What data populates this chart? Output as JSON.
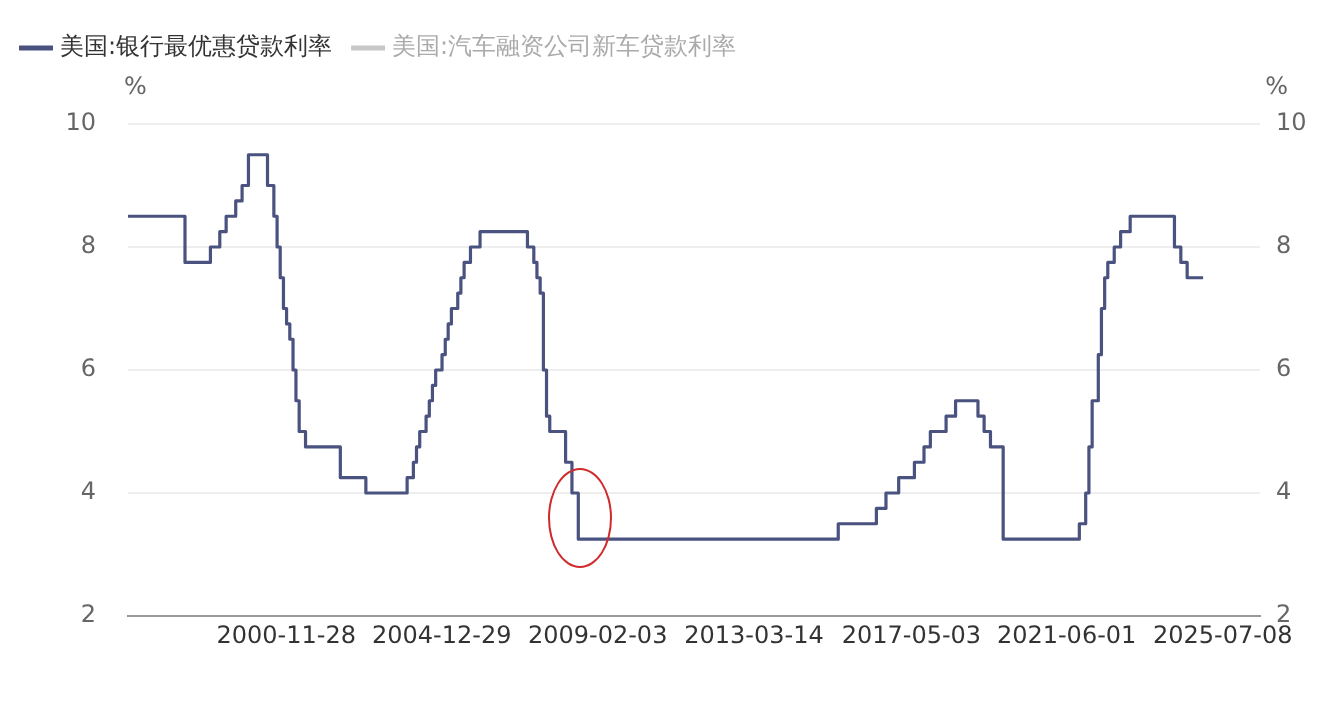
{
  "chart_data": {
    "type": "step",
    "ylabel": "%",
    "y2label": "%",
    "legend": "top left",
    "grid": "y",
    "xlim": [
      "1996-10",
      "2026-07"
    ],
    "xticks": [
      {
        "value": "2000-11-28",
        "label": "2000-11-28"
      },
      {
        "value": "2004-12-29",
        "label": "2004-12-29"
      },
      {
        "value": "2009-02-03",
        "label": "2009-02-03"
      },
      {
        "value": "2013-03-14",
        "label": "2013-03-14"
      },
      {
        "value": "2017-05-03",
        "label": "2017-05-03"
      },
      {
        "value": "2021-06-01",
        "label": "2021-06-01"
      },
      {
        "value": "2025-07-08",
        "label": "2025-07-08"
      }
    ],
    "ylim": [
      2,
      10
    ],
    "yticks": [
      2,
      4,
      6,
      8,
      10
    ],
    "y2lim": [
      2,
      10
    ],
    "y2ticks": [
      2,
      4,
      6,
      8,
      10
    ],
    "series": [
      {
        "name": "美国:银行最优惠贷款利率",
        "color": "#4a5280",
        "x": [
          "1996-10",
          "1998-04",
          "1998-12",
          "1999-03",
          "1999-05",
          "1999-08",
          "1999-10",
          "1999-12",
          "2000-06",
          "2000-08",
          "2000-09",
          "2000-10",
          "2000-11",
          "2000-12",
          "2001-01",
          "2001-02",
          "2001-03",
          "2001-04",
          "2001-06",
          "2002-05",
          "2003-01",
          "2004-02",
          "2004-04",
          "2004-05",
          "2004-06",
          "2004-08",
          "2004-09",
          "2004-10",
          "2004-11",
          "2005-01",
          "2005-02",
          "2005-03",
          "2005-04",
          "2005-06",
          "2005-07",
          "2005-08",
          "2005-10",
          "2006-01",
          "2007-04",
          "2007-06",
          "2007-07",
          "2007-08",
          "2007-09",
          "2007-10",
          "2007-11",
          "2008-04",
          "2008-06",
          "2008-08",
          "2015-06",
          "2016-06",
          "2016-09",
          "2017-01",
          "2017-06",
          "2017-09",
          "2017-11",
          "2018-04",
          "2018-07",
          "2019-02",
          "2019-04",
          "2019-06",
          "2019-10",
          "2021-10",
          "2021-12",
          "2022-01",
          "2022-02",
          "2022-04",
          "2022-05",
          "2022-06",
          "2022-07",
          "2022-09",
          "2022-11",
          "2023-02",
          "2024-04",
          "2024-06",
          "2024-08",
          "2025-01"
        ],
        "values": [
          8.5,
          7.75,
          8.0,
          8.25,
          8.5,
          8.75,
          9.0,
          9.5,
          9.0,
          8.5,
          8.0,
          7.5,
          7.0,
          6.75,
          6.5,
          6.0,
          5.5,
          5.0,
          4.75,
          4.25,
          4.0,
          4.25,
          4.5,
          4.75,
          5.0,
          5.25,
          5.5,
          5.75,
          6.0,
          6.25,
          6.5,
          6.75,
          7.0,
          7.25,
          7.5,
          7.75,
          8.0,
          8.25,
          8.0,
          7.75,
          7.5,
          7.25,
          6.0,
          5.25,
          5.0,
          4.5,
          4.0,
          3.25,
          3.5,
          3.75,
          4.0,
          4.25,
          4.5,
          4.75,
          5.0,
          5.25,
          5.5,
          5.25,
          5.0,
          4.75,
          3.25,
          3.5,
          4.0,
          4.75,
          5.5,
          6.25,
          7.0,
          7.5,
          7.75,
          8.0,
          8.25,
          8.5,
          8.0,
          7.75,
          7.5,
          7.5
        ]
      },
      {
        "name": "美国:汽车融资公司新车贷款利率",
        "color": "#c8c8c8"
      }
    ]
  }
}
